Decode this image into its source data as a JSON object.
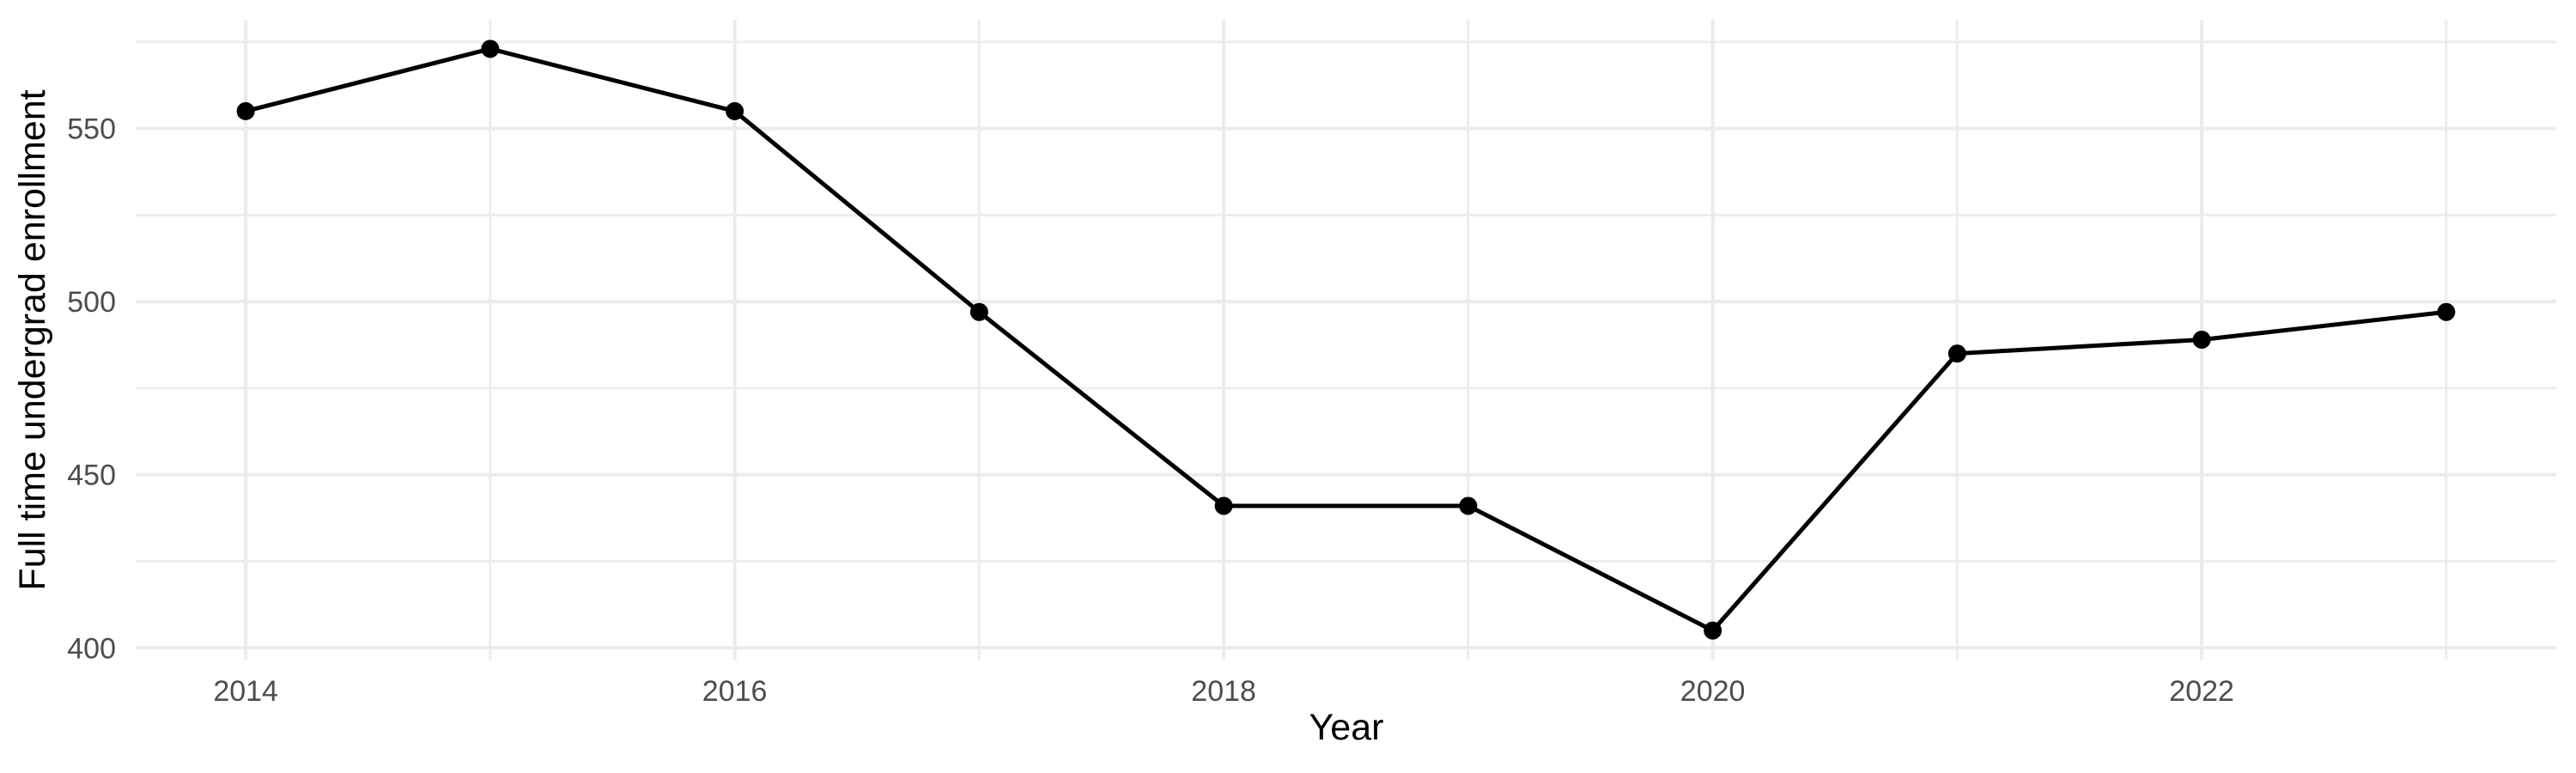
{
  "chart": {
    "x_axis_title": "Year",
    "y_axis_title": "Full time undergrad enrollment"
  },
  "chart_data": {
    "type": "line",
    "title": "",
    "xlabel": "Year",
    "ylabel": "Full time undergrad enrollment",
    "x": [
      2014,
      2015,
      2016,
      2017,
      2018,
      2019,
      2020,
      2021,
      2022,
      2023
    ],
    "values": [
      555,
      573,
      555,
      497,
      441,
      441,
      405,
      485,
      489,
      497
    ],
    "series": [
      {
        "name": "Full time undergrad enrollment",
        "values": [
          555,
          573,
          555,
          497,
          441,
          441,
          405,
          485,
          489,
          497
        ]
      }
    ],
    "xlim": [
      2013.55,
      2023.45
    ],
    "ylim": [
      396.6,
      581.4
    ],
    "x_major_ticks": [
      2014,
      2016,
      2018,
      2020,
      2022
    ],
    "x_minor_ticks": [
      2015,
      2017,
      2019,
      2021,
      2023
    ],
    "y_major_ticks": [
      400,
      450,
      500,
      550
    ],
    "y_minor_ticks": [
      425,
      475,
      525,
      575
    ],
    "grid": true,
    "legend": "none",
    "marker": "filled-circle",
    "colors": {
      "line": "#000000",
      "point": "#000000",
      "grid_major": "#EBEBEB",
      "grid_minor": "#EDEDED",
      "tick_label": "#4D4D4D",
      "axis_title": "#000000",
      "background": "#FFFFFF"
    }
  }
}
